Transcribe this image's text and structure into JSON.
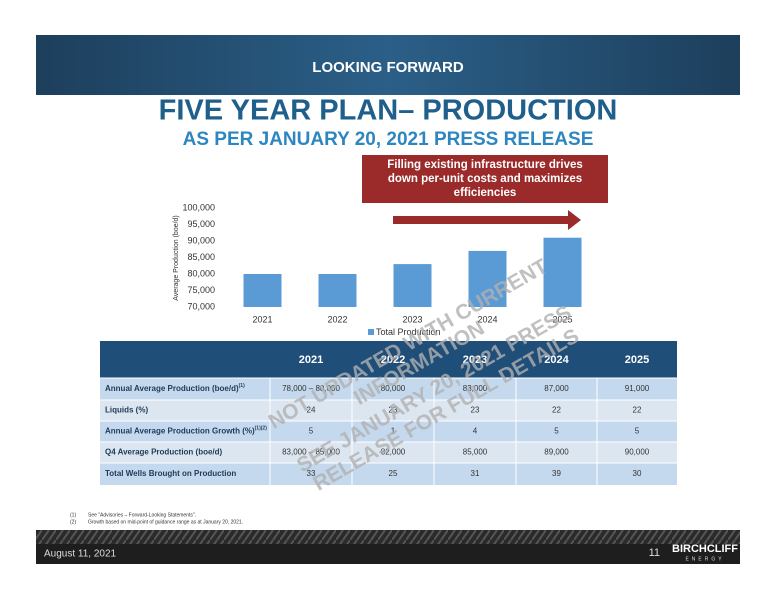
{
  "header": {
    "band": "LOOKING FORWARD",
    "title": "FIVE YEAR PLAN– PRODUCTION",
    "subtitle": "AS PER JANUARY 20, 2021 PRESS RELEASE",
    "callout": [
      "Filling existing infrastructure drives",
      "down per-unit costs and maximizes",
      "efficiencies"
    ]
  },
  "chart_data": {
    "type": "bar",
    "y_label": "Average Production (boe/d)",
    "categories": [
      "2021",
      "2022",
      "2023",
      "2024",
      "2025"
    ],
    "series": [
      {
        "name": "Total Production",
        "color": "#5b9bd5",
        "values": [
          80000,
          80000,
          83000,
          87000,
          91000
        ]
      }
    ],
    "ylim": [
      70000,
      100000
    ],
    "yticks": [
      {
        "value": 70000,
        "label": "70,000"
      },
      {
        "value": 75000,
        "label": "75,000"
      },
      {
        "value": 80000,
        "label": "80,000"
      },
      {
        "value": 85000,
        "label": "85,000"
      },
      {
        "value": 90000,
        "label": "90,000"
      },
      {
        "value": 95000,
        "label": "95,000"
      },
      {
        "value": 100000,
        "label": "100,000"
      }
    ],
    "legend": "bottom",
    "grid": false
  },
  "table": {
    "columns": [
      "2021",
      "2022",
      "2023",
      "2024",
      "2025"
    ],
    "rows": [
      {
        "label": "Annual Average Production (boe/d)",
        "note": "(1)",
        "cells": [
          "78,000 – 80,000",
          "80,000",
          "83,000",
          "87,000",
          "91,000"
        ]
      },
      {
        "label": "Liquids (%)",
        "note": "",
        "cells": [
          "24",
          "23",
          "23",
          "22",
          "22"
        ]
      },
      {
        "label": "Annual Average Production Growth (%)",
        "note": "(1)(2)",
        "cells": [
          "5",
          "1",
          "4",
          "5",
          "5"
        ]
      },
      {
        "label": "Q4 Average Production (boe/d)",
        "note": "",
        "cells": [
          "83,000 – 85,000",
          "82,000",
          "85,000",
          "89,000",
          "90,000"
        ]
      },
      {
        "label": "Total Wells Brought on Production",
        "note": "",
        "cells": [
          "33",
          "25",
          "31",
          "39",
          "30"
        ]
      }
    ]
  },
  "watermark": [
    "NOT UPDATED WITH CURRENT",
    "INFORMATION",
    "SEE JANUARY 20, 2021 PRESS",
    "RELEASE FOR FULL DETAILS"
  ],
  "footnotes": [
    {
      "mark": "(1)",
      "text": "See \"Advisories – Forward-Looking Statements\"."
    },
    {
      "mark": "(2)",
      "text": "Growth based on mid-point of guidance range as at January 20, 2021."
    }
  ],
  "footer": {
    "date": "August 11, 2021",
    "page": "11",
    "logo": "BIRCHCLIFF",
    "logo_sub": "ENERGY"
  }
}
